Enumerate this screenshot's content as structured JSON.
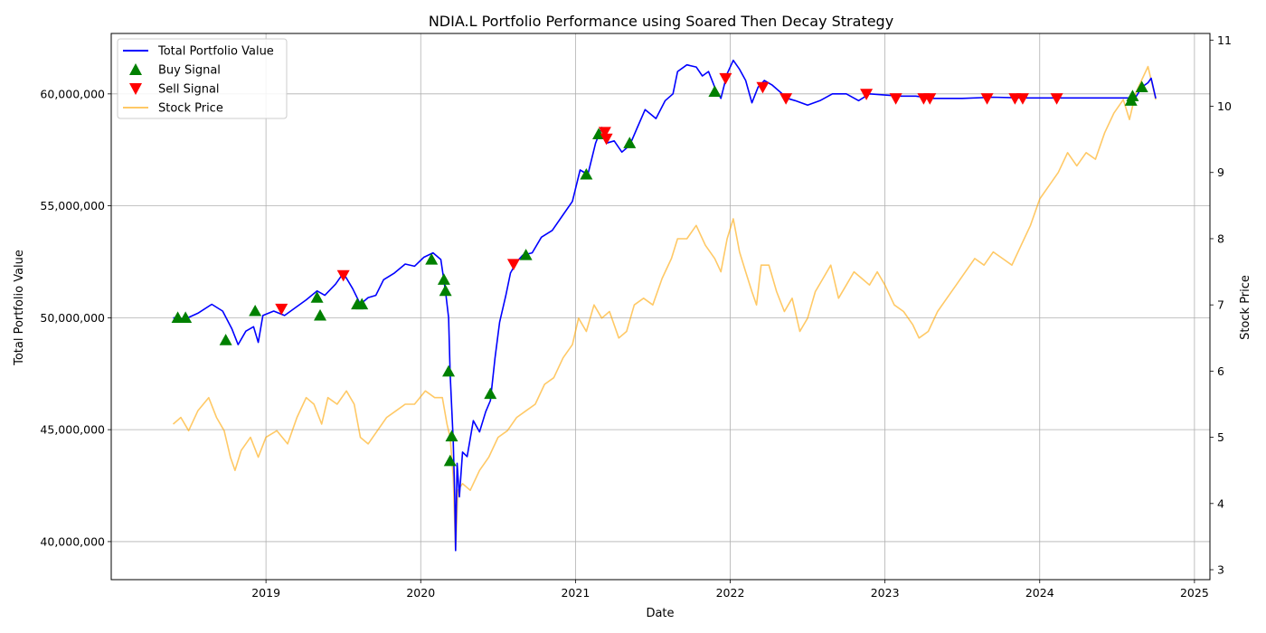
{
  "chart_data": {
    "type": "line",
    "title": "NDIA.L Portfolio Performance using Soared Then Decay Strategy",
    "xlabel": "Date",
    "ylabel_left": "Total Portfolio Value",
    "ylabel_right": "Stock Price",
    "x_range": [
      2018.0,
      2025.1
    ],
    "x_ticks": [
      "2019",
      "2020",
      "2021",
      "2022",
      "2023",
      "2024",
      "2025"
    ],
    "ylim_left": [
      38300000,
      62700000
    ],
    "y_ticks_left": [
      "40,000,000",
      "45,000,000",
      "50,000,000",
      "55,000,000",
      "60,000,000"
    ],
    "ylim_right": [
      2.85,
      11.1
    ],
    "y_ticks_right": [
      "3",
      "4",
      "5",
      "6",
      "7",
      "8",
      "9",
      "10",
      "11"
    ],
    "grid": true,
    "legend_position": "upper-left",
    "legend": [
      "Total Portfolio Value",
      "Buy Signal",
      "Sell Signal",
      "Stock Price"
    ],
    "colors": {
      "portfolio": "#0000ff",
      "buy": "#008000",
      "sell": "#ff0000",
      "price": "#ffa500"
    },
    "series": [
      {
        "name": "Total Portfolio Value",
        "axis": "left",
        "points": [
          [
            2018.4,
            50000000
          ],
          [
            2018.48,
            49950000
          ],
          [
            2018.56,
            50200000
          ],
          [
            2018.65,
            50600000
          ],
          [
            2018.72,
            50300000
          ],
          [
            2018.78,
            49500000
          ],
          [
            2018.82,
            48800000
          ],
          [
            2018.87,
            49400000
          ],
          [
            2018.92,
            49600000
          ],
          [
            2018.95,
            48900000
          ],
          [
            2018.98,
            50100000
          ],
          [
            2019.05,
            50300000
          ],
          [
            2019.12,
            50100000
          ],
          [
            2019.18,
            50400000
          ],
          [
            2019.26,
            50800000
          ],
          [
            2019.33,
            51200000
          ],
          [
            2019.38,
            51000000
          ],
          [
            2019.45,
            51500000
          ],
          [
            2019.5,
            52000000
          ],
          [
            2019.56,
            51300000
          ],
          [
            2019.61,
            50600000
          ],
          [
            2019.66,
            50900000
          ],
          [
            2019.71,
            51000000
          ],
          [
            2019.76,
            51700000
          ],
          [
            2019.83,
            52000000
          ],
          [
            2019.9,
            52400000
          ],
          [
            2019.96,
            52300000
          ],
          [
            2020.02,
            52700000
          ],
          [
            2020.08,
            52900000
          ],
          [
            2020.13,
            52600000
          ],
          [
            2020.16,
            51200000
          ],
          [
            2020.18,
            50000000
          ],
          [
            2020.19,
            47500000
          ],
          [
            2020.21,
            44500000
          ],
          [
            2020.22,
            42000000
          ],
          [
            2020.225,
            39600000
          ],
          [
            2020.235,
            43500000
          ],
          [
            2020.25,
            42000000
          ],
          [
            2020.27,
            44000000
          ],
          [
            2020.3,
            43800000
          ],
          [
            2020.34,
            45400000
          ],
          [
            2020.38,
            44900000
          ],
          [
            2020.42,
            45800000
          ],
          [
            2020.45,
            46300000
          ],
          [
            2020.48,
            48200000
          ],
          [
            2020.51,
            49800000
          ],
          [
            2020.55,
            51000000
          ],
          [
            2020.58,
            52000000
          ],
          [
            2020.62,
            52500000
          ],
          [
            2020.66,
            52800000
          ],
          [
            2020.72,
            52900000
          ],
          [
            2020.78,
            53600000
          ],
          [
            2020.85,
            53900000
          ],
          [
            2020.92,
            54600000
          ],
          [
            2020.98,
            55200000
          ],
          [
            2021.03,
            56600000
          ],
          [
            2021.08,
            56400000
          ],
          [
            2021.13,
            57800000
          ],
          [
            2021.17,
            58500000
          ],
          [
            2021.2,
            57800000
          ],
          [
            2021.25,
            57900000
          ],
          [
            2021.3,
            57400000
          ],
          [
            2021.35,
            57700000
          ],
          [
            2021.4,
            58500000
          ],
          [
            2021.45,
            59300000
          ],
          [
            2021.52,
            58900000
          ],
          [
            2021.58,
            59700000
          ],
          [
            2021.63,
            60000000
          ],
          [
            2021.66,
            61000000
          ],
          [
            2021.72,
            61300000
          ],
          [
            2021.78,
            61200000
          ],
          [
            2021.82,
            60800000
          ],
          [
            2021.86,
            61000000
          ],
          [
            2021.9,
            60300000
          ],
          [
            2021.94,
            59800000
          ],
          [
            2021.98,
            60900000
          ],
          [
            2022.02,
            61500000
          ],
          [
            2022.06,
            61100000
          ],
          [
            2022.1,
            60600000
          ],
          [
            2022.14,
            59600000
          ],
          [
            2022.18,
            60300000
          ],
          [
            2022.22,
            60600000
          ],
          [
            2022.27,
            60400000
          ],
          [
            2022.32,
            60100000
          ],
          [
            2022.37,
            59800000
          ],
          [
            2022.42,
            59700000
          ],
          [
            2022.5,
            59500000
          ],
          [
            2022.58,
            59700000
          ],
          [
            2022.66,
            60000000
          ],
          [
            2022.75,
            60000000
          ],
          [
            2022.83,
            59700000
          ],
          [
            2022.9,
            60000000
          ],
          [
            2023.0,
            59950000
          ],
          [
            2023.1,
            59900000
          ],
          [
            2023.2,
            59900000
          ],
          [
            2023.3,
            59800000
          ],
          [
            2023.5,
            59800000
          ],
          [
            2023.7,
            59850000
          ],
          [
            2023.9,
            59820000
          ],
          [
            2024.2,
            59820000
          ],
          [
            2024.58,
            59820000
          ],
          [
            2024.62,
            59850000
          ],
          [
            2024.66,
            60300000
          ],
          [
            2024.7,
            60500000
          ],
          [
            2024.72,
            60700000
          ],
          [
            2024.75,
            59800000
          ]
        ]
      },
      {
        "name": "Stock Price",
        "axis": "right",
        "points": [
          [
            2018.4,
            5.2
          ],
          [
            2018.45,
            5.3
          ],
          [
            2018.5,
            5.1
          ],
          [
            2018.56,
            5.4
          ],
          [
            2018.63,
            5.6
          ],
          [
            2018.68,
            5.3
          ],
          [
            2018.73,
            5.1
          ],
          [
            2018.77,
            4.7
          ],
          [
            2018.8,
            4.5
          ],
          [
            2018.84,
            4.8
          ],
          [
            2018.9,
            5.0
          ],
          [
            2018.95,
            4.7
          ],
          [
            2019.0,
            5.0
          ],
          [
            2019.07,
            5.1
          ],
          [
            2019.14,
            4.9
          ],
          [
            2019.2,
            5.3
          ],
          [
            2019.26,
            5.6
          ],
          [
            2019.31,
            5.5
          ],
          [
            2019.36,
            5.2
          ],
          [
            2019.4,
            5.6
          ],
          [
            2019.46,
            5.5
          ],
          [
            2019.52,
            5.7
          ],
          [
            2019.57,
            5.5
          ],
          [
            2019.61,
            5.0
          ],
          [
            2019.66,
            4.9
          ],
          [
            2019.72,
            5.1
          ],
          [
            2019.78,
            5.3
          ],
          [
            2019.84,
            5.4
          ],
          [
            2019.9,
            5.5
          ],
          [
            2019.96,
            5.5
          ],
          [
            2020.03,
            5.7
          ],
          [
            2020.09,
            5.6
          ],
          [
            2020.14,
            5.6
          ],
          [
            2020.17,
            5.2
          ],
          [
            2020.19,
            5.0
          ],
          [
            2020.21,
            4.4
          ],
          [
            2020.225,
            3.3
          ],
          [
            2020.24,
            4.2
          ],
          [
            2020.27,
            4.3
          ],
          [
            2020.32,
            4.2
          ],
          [
            2020.38,
            4.5
          ],
          [
            2020.44,
            4.7
          ],
          [
            2020.5,
            5.0
          ],
          [
            2020.56,
            5.1
          ],
          [
            2020.62,
            5.3
          ],
          [
            2020.68,
            5.4
          ],
          [
            2020.74,
            5.5
          ],
          [
            2020.8,
            5.8
          ],
          [
            2020.86,
            5.9
          ],
          [
            2020.92,
            6.2
          ],
          [
            2020.98,
            6.4
          ],
          [
            2021.02,
            6.8
          ],
          [
            2021.07,
            6.6
          ],
          [
            2021.12,
            7.0
          ],
          [
            2021.17,
            6.8
          ],
          [
            2021.22,
            6.9
          ],
          [
            2021.28,
            6.5
          ],
          [
            2021.33,
            6.6
          ],
          [
            2021.38,
            7.0
          ],
          [
            2021.44,
            7.1
          ],
          [
            2021.5,
            7.0
          ],
          [
            2021.56,
            7.4
          ],
          [
            2021.62,
            7.7
          ],
          [
            2021.66,
            8.0
          ],
          [
            2021.72,
            8.0
          ],
          [
            2021.78,
            8.2
          ],
          [
            2021.84,
            7.9
          ],
          [
            2021.9,
            7.7
          ],
          [
            2021.94,
            7.5
          ],
          [
            2021.98,
            8.0
          ],
          [
            2022.02,
            8.3
          ],
          [
            2022.06,
            7.8
          ],
          [
            2022.1,
            7.5
          ],
          [
            2022.14,
            7.2
          ],
          [
            2022.17,
            7.0
          ],
          [
            2022.2,
            7.6
          ],
          [
            2022.25,
            7.6
          ],
          [
            2022.3,
            7.2
          ],
          [
            2022.35,
            6.9
          ],
          [
            2022.4,
            7.1
          ],
          [
            2022.45,
            6.6
          ],
          [
            2022.5,
            6.8
          ],
          [
            2022.55,
            7.2
          ],
          [
            2022.6,
            7.4
          ],
          [
            2022.65,
            7.6
          ],
          [
            2022.7,
            7.1
          ],
          [
            2022.75,
            7.3
          ],
          [
            2022.8,
            7.5
          ],
          [
            2022.85,
            7.4
          ],
          [
            2022.9,
            7.3
          ],
          [
            2022.95,
            7.5
          ],
          [
            2023.0,
            7.3
          ],
          [
            2023.06,
            7.0
          ],
          [
            2023.12,
            6.9
          ],
          [
            2023.18,
            6.7
          ],
          [
            2023.22,
            6.5
          ],
          [
            2023.28,
            6.6
          ],
          [
            2023.34,
            6.9
          ],
          [
            2023.4,
            7.1
          ],
          [
            2023.46,
            7.3
          ],
          [
            2023.52,
            7.5
          ],
          [
            2023.58,
            7.7
          ],
          [
            2023.64,
            7.6
          ],
          [
            2023.7,
            7.8
          ],
          [
            2023.76,
            7.7
          ],
          [
            2023.82,
            7.6
          ],
          [
            2023.88,
            7.9
          ],
          [
            2023.94,
            8.2
          ],
          [
            2024.0,
            8.6
          ],
          [
            2024.06,
            8.8
          ],
          [
            2024.12,
            9.0
          ],
          [
            2024.18,
            9.3
          ],
          [
            2024.24,
            9.1
          ],
          [
            2024.3,
            9.3
          ],
          [
            2024.36,
            9.2
          ],
          [
            2024.42,
            9.6
          ],
          [
            2024.48,
            9.9
          ],
          [
            2024.54,
            10.1
          ],
          [
            2024.58,
            9.8
          ],
          [
            2024.62,
            10.2
          ],
          [
            2024.66,
            10.4
          ],
          [
            2024.7,
            10.6
          ],
          [
            2024.73,
            10.3
          ],
          [
            2024.75,
            10.1
          ]
        ]
      }
    ],
    "buy_signals": [
      [
        2018.43,
        50000000
      ],
      [
        2018.48,
        50000000
      ],
      [
        2018.74,
        49000000
      ],
      [
        2018.93,
        50300000
      ],
      [
        2019.33,
        50900000
      ],
      [
        2019.35,
        50100000
      ],
      [
        2019.59,
        50600000
      ],
      [
        2019.62,
        50600000
      ],
      [
        2020.07,
        52600000
      ],
      [
        2020.15,
        51700000
      ],
      [
        2020.16,
        51200000
      ],
      [
        2020.18,
        47600000
      ],
      [
        2020.19,
        43600000
      ],
      [
        2020.2,
        44700000
      ],
      [
        2020.45,
        46600000
      ],
      [
        2020.68,
        52800000
      ],
      [
        2021.07,
        56400000
      ],
      [
        2021.15,
        58200000
      ],
      [
        2021.35,
        57800000
      ],
      [
        2021.9,
        60100000
      ],
      [
        2024.59,
        59700000
      ],
      [
        2024.6,
        59900000
      ],
      [
        2024.66,
        60300000
      ]
    ],
    "sell_signals": [
      [
        2019.1,
        50400000
      ],
      [
        2019.5,
        51900000
      ],
      [
        2020.6,
        52400000
      ],
      [
        2021.19,
        58300000
      ],
      [
        2021.2,
        58000000
      ],
      [
        2021.97,
        60700000
      ],
      [
        2022.21,
        60300000
      ],
      [
        2022.36,
        59800000
      ],
      [
        2022.88,
        60000000
      ],
      [
        2023.07,
        59800000
      ],
      [
        2023.25,
        59800000
      ],
      [
        2023.29,
        59800000
      ],
      [
        2023.66,
        59800000
      ],
      [
        2023.84,
        59800000
      ],
      [
        2023.89,
        59800000
      ],
      [
        2024.11,
        59800000
      ]
    ]
  }
}
